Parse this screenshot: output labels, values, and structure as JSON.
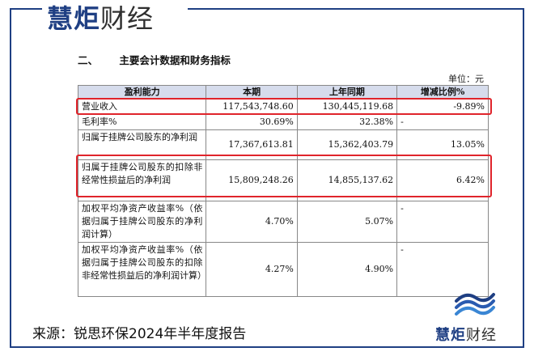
{
  "brand": {
    "part1": "慧炬",
    "part2": "财经"
  },
  "section": {
    "number": "二、",
    "title": "主要会计数据和财务指标"
  },
  "unit": "单位：元",
  "table": {
    "headers": [
      "盈利能力",
      "本期",
      "上年同期",
      "增减比例%"
    ],
    "rows": [
      {
        "label": "营业收入",
        "current": "117,543,748.60",
        "prior": "130,445,119.68",
        "change": "-9.89%"
      },
      {
        "label": "毛利率%",
        "current": "30.69%",
        "prior": "32.38%",
        "change": "-"
      },
      {
        "label": "归属于挂牌公司股东的净利润",
        "current": "17,367,613.81",
        "prior": "15,362,403.79",
        "change": "13.05%"
      },
      {
        "label": "归属于挂牌公司股东的扣除非经常性损益后的净利润",
        "current": "15,809,248.26",
        "prior": "14,855,137.62",
        "change": "6.42%"
      },
      {
        "label": "加权平均净资产收益率%（依据归属于挂牌公司股东的净利润计算）",
        "current": "4.70%",
        "prior": "5.07%",
        "change": "-"
      },
      {
        "label": "加权平均净资产收益率%（依据归属于挂牌公司股东的扣除非经常性损益后的净利润计算）",
        "current": "4.27%",
        "prior": "4.90%",
        "change": "-"
      }
    ]
  },
  "source": "来源：锐思环保2024年半年度报告",
  "colors": {
    "brand_blue": "#1f3f83",
    "highlight_red": "#e0242b",
    "header_bg": "#d6dcec"
  }
}
